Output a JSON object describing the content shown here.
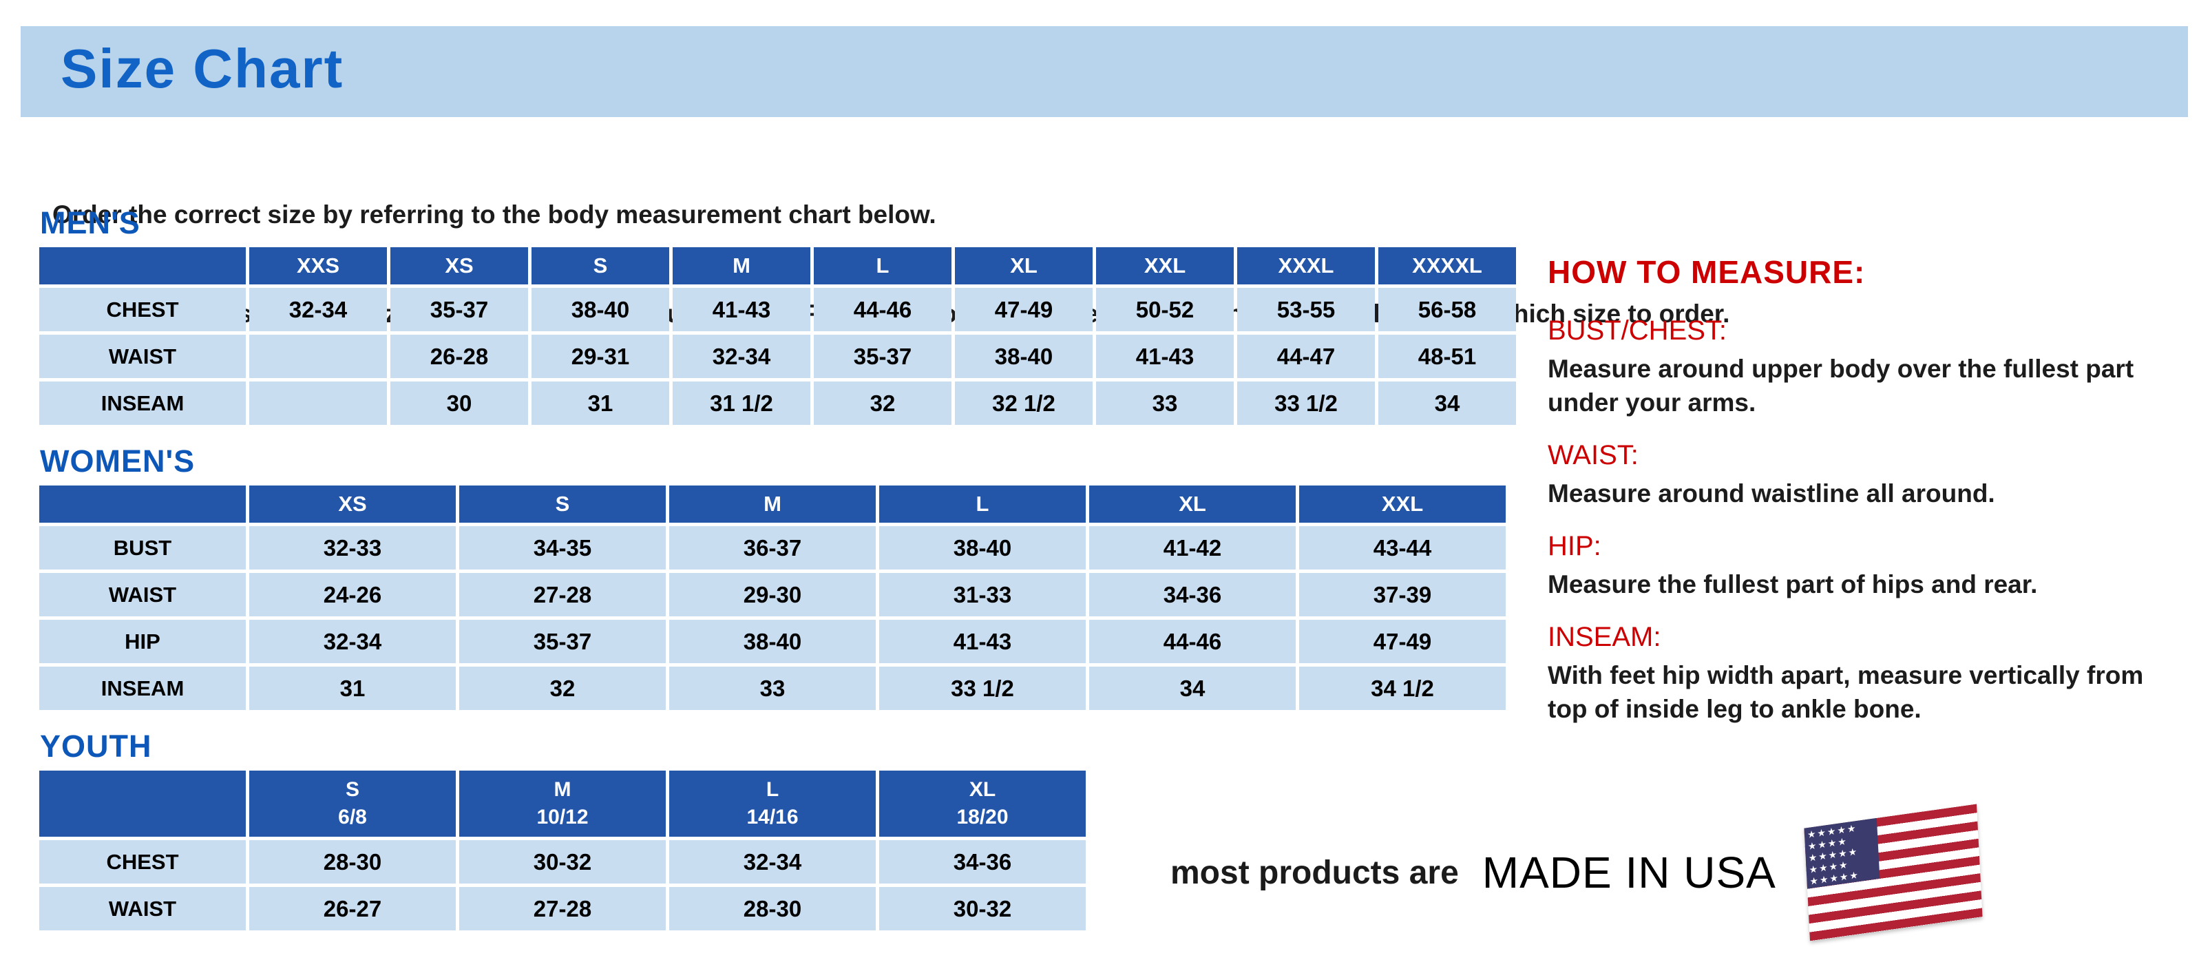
{
  "header": {
    "title": "Size Chart",
    "intro_line1": "Order the correct size by referring to the body measurement chart below.",
    "intro_line2": "Measurements shown on size chart are body measurements.  Find your body measurements on the chart to determine which size to order."
  },
  "mens": {
    "heading": "MEN'S",
    "cols": [
      "XXS",
      "XS",
      "S",
      "M",
      "L",
      "XL",
      "XXL",
      "XXXL",
      "XXXXL"
    ],
    "rows": [
      {
        "label": "CHEST",
        "v": [
          "32-34",
          "35-37",
          "38-40",
          "41-43",
          "44-46",
          "47-49",
          "50-52",
          "53-55",
          "56-58"
        ]
      },
      {
        "label": "WAIST",
        "v": [
          "",
          "26-28",
          "29-31",
          "32-34",
          "35-37",
          "38-40",
          "41-43",
          "44-47",
          "48-51"
        ]
      },
      {
        "label": "INSEAM",
        "v": [
          "",
          "30",
          "31",
          "31 1/2",
          "32",
          "32 1/2",
          "33",
          "33 1/2",
          "34"
        ]
      }
    ]
  },
  "womens": {
    "heading": "WOMEN'S",
    "cols": [
      "XS",
      "S",
      "M",
      "L",
      "XL",
      "XXL"
    ],
    "rows": [
      {
        "label": "BUST",
        "v": [
          "32-33",
          "34-35",
          "36-37",
          "38-40",
          "41-42",
          "43-44"
        ]
      },
      {
        "label": "WAIST",
        "v": [
          "24-26",
          "27-28",
          "29-30",
          "31-33",
          "34-36",
          "37-39"
        ]
      },
      {
        "label": "HIP",
        "v": [
          "32-34",
          "35-37",
          "38-40",
          "41-43",
          "44-46",
          "47-49"
        ]
      },
      {
        "label": "INSEAM",
        "v": [
          "31",
          "32",
          "33",
          "33 1/2",
          "34",
          "34 1/2"
        ]
      }
    ]
  },
  "youth": {
    "heading": "YOUTH",
    "cols": [
      "S\n6/8",
      "M\n10/12",
      "L\n14/16",
      "XL\n18/20"
    ],
    "rows": [
      {
        "label": "CHEST",
        "v": [
          "28-30",
          "30-32",
          "32-34",
          "34-36"
        ]
      },
      {
        "label": "WAIST",
        "v": [
          "26-27",
          "27-28",
          "28-30",
          "30-32"
        ]
      }
    ]
  },
  "measure": {
    "heading": "HOW TO MEASURE:",
    "sections": [
      {
        "label": "BUST/CHEST:",
        "text": "Measure around upper body over the fullest part under your arms."
      },
      {
        "label": "WAIST:",
        "text": "Measure around waistline all around."
      },
      {
        "label": "HIP:",
        "text": "Measure the fullest part of hips and rear."
      },
      {
        "label": "INSEAM:",
        "text": "With feet hip width apart, measure vertically from top of inside leg to ankle bone."
      }
    ]
  },
  "footer": {
    "prefix": "most products are",
    "made_in": "MADE IN USA",
    "flag_icon": "usa-flag-icon"
  },
  "colors": {
    "header_bar": "#b7d4ec",
    "title_blue": "#1163c6",
    "heading_blue": "#0d57b8",
    "th_blue": "#2356a8",
    "cell_blue": "#c9ddf1",
    "red": "#cc0000",
    "flag_red": "#b22234",
    "flag_blue": "#3c3b6e",
    "text_dark": "#1c1c1c"
  }
}
